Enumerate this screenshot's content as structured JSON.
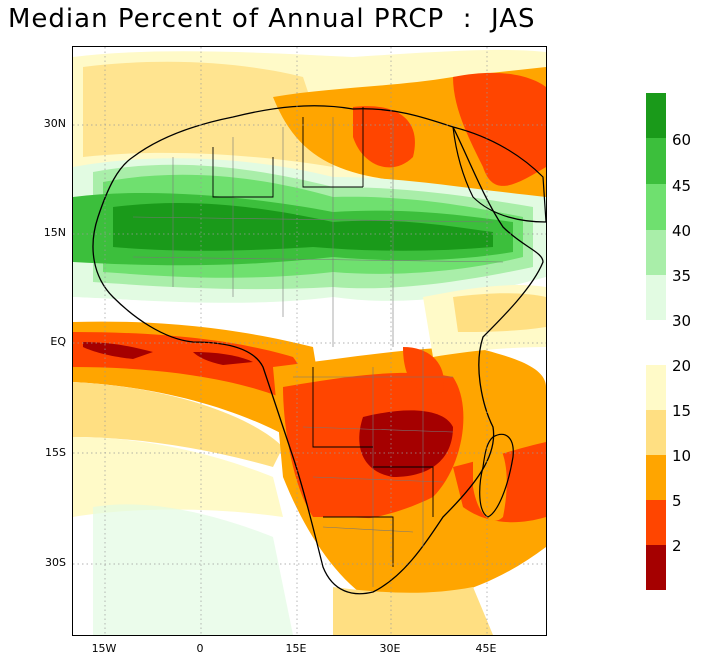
{
  "title": "Median Percent of Annual PRCP  :  JAS",
  "axes": {
    "y_ticks": [
      "30N",
      "15N",
      "EQ",
      "15S",
      "30S"
    ],
    "x_ticks": [
      "15W",
      "0",
      "15E",
      "30E",
      "45E"
    ]
  },
  "colorbar": {
    "upper": {
      "labels": [
        "60",
        "45",
        "40",
        "35",
        "30"
      ],
      "colors": [
        "#1a9a1a",
        "#3cbf3c",
        "#6fe06f",
        "#a9eea9",
        "#e2fbe2"
      ]
    },
    "lower": {
      "labels": [
        "20",
        "15",
        "10",
        "5",
        "2"
      ],
      "colors": [
        "#fffac8",
        "#ffdf82",
        "#ffa500",
        "#ff4500",
        "#a50000"
      ]
    }
  },
  "colors": {
    "dark_red": "#a50000",
    "red": "#ff4500",
    "orange": "#ffa500",
    "light_orange": "#ffdf82",
    "pale_yellow": "#fffac8",
    "pale_green": "#e2fbe2",
    "light_green": "#a9eea9",
    "mid_green": "#6fe06f",
    "green": "#3cbf3c",
    "dark_green": "#1a9a1a"
  }
}
